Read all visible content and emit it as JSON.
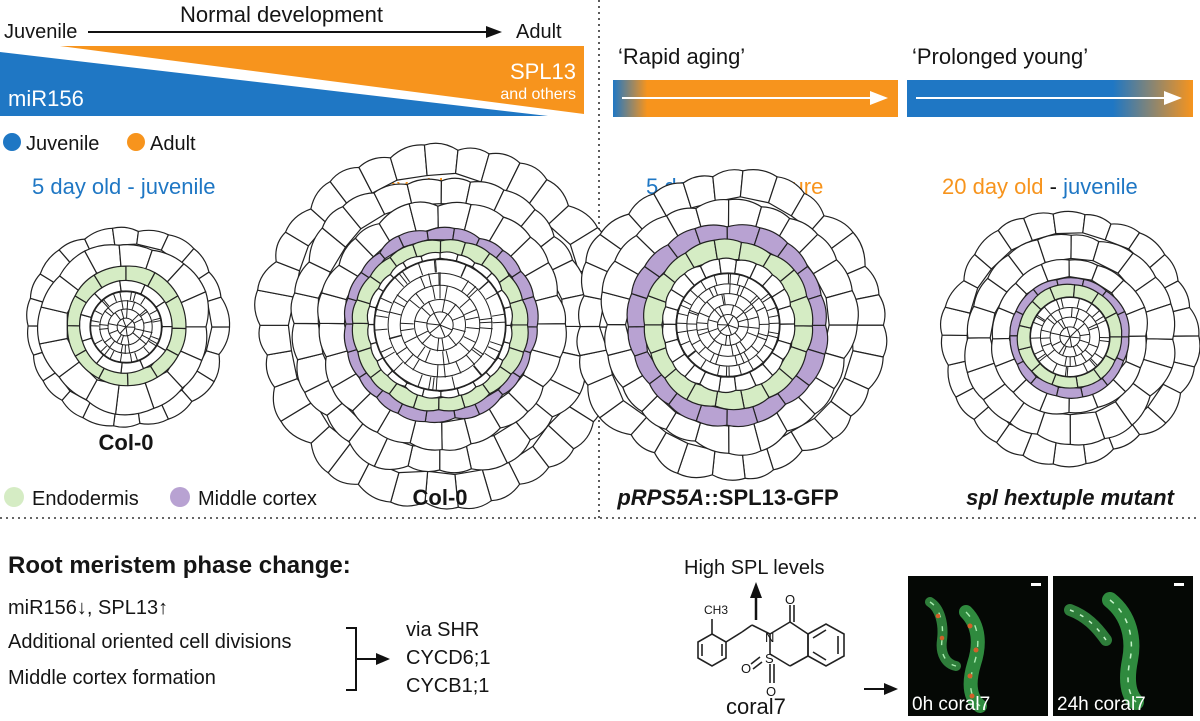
{
  "top_left": {
    "juvenile": "Juvenile",
    "normal_development": "Normal development",
    "adult": "Adult",
    "spl13": "SPL13",
    "and_others": "and others",
    "mir156": "miR156"
  },
  "legend_phase": {
    "juvenile": "Juvenile",
    "adult": "Adult"
  },
  "top_right": {
    "rapid_aging": "‘Rapid aging’",
    "prolonged_young": "‘Prolonged young’"
  },
  "panels": {
    "p1": {
      "days": "5 day old",
      "sep": " - ",
      "stage": "juvenile",
      "genotype": "Col-0"
    },
    "p2": {
      "days": "20 day old",
      "sep": " - ",
      "stage": "adult",
      "genotype": "Col-0"
    },
    "p3": {
      "days": "5 day old",
      "sep": " - ",
      "stage": "mature",
      "genotype_italic": "pRPS5A",
      "genotype_rest": "::SPL13-GFP"
    },
    "p4": {
      "days": "20 day old",
      "sep": " - ",
      "stage": "juvenile",
      "genotype": "spl hextuple mutant"
    }
  },
  "legend_tissue": {
    "endodermis": "Endodermis",
    "middle_cortex": "Middle cortex"
  },
  "bottom": {
    "title": "Root meristem phase change:",
    "line1": "miR156↓, SPL13↑",
    "line2": "Additional oriented cell divisions",
    "line3": "Middle cortex formation",
    "via1": "via SHR",
    "via2": "CYCD6;1",
    "via3": "CYCB1;1",
    "high_spl": "High SPL levels",
    "compound": "coral7",
    "ch3": "CH3",
    "atom_o": "O",
    "atom_n": "N",
    "atom_s": "S",
    "img1": "0h coral7",
    "img2": "24h coral7"
  },
  "colors": {
    "blue": "#1f77c4",
    "orange": "#f7941d",
    "endodermis": "#d5ecc4",
    "cortex": "#b8a2d2",
    "micro_bg": "#050805",
    "micro_cell": "#3e9e4a"
  }
}
